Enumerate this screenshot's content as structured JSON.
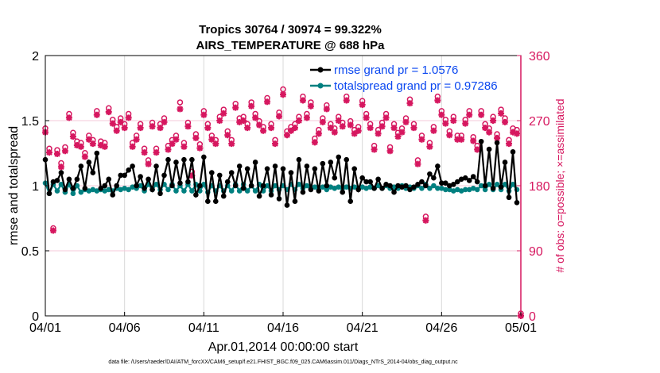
{
  "chart_data": {
    "type": "line",
    "title": [
      "Tropics 30764 / 30974 = 99.322%",
      "AIRS_TEMPERATURE @ 688 hPa"
    ],
    "xlabel": "Apr.01,2014 00:00:00 start",
    "ylabel": "rmse and totalspread",
    "y2label": "# of obs: o=possible; ×=assimilated",
    "footer": "data file: /Users/raeder/DAI/ATM_forcXX/CAM6_setup/f.e21.FHIST_BGC.f09_025.CAM6assim.011/Diags_NTrS_2014-04/obs_diag_output.nc",
    "x_ticks": [
      "04/01",
      "04/06",
      "04/11",
      "04/16",
      "04/21",
      "04/26",
      "05/01"
    ],
    "x_range_days": [
      0,
      30
    ],
    "ylim": [
      0,
      2
    ],
    "y_ticks": [
      "0",
      "0.5",
      "1",
      "1.5",
      "2"
    ],
    "y2lim": [
      0,
      360
    ],
    "y2_ticks": [
      "0",
      "90",
      "180",
      "270",
      "360"
    ],
    "grid": true,
    "legend_placement": "top-right",
    "x_step_hours": 6,
    "colors": {
      "rmse": "#000000",
      "spread": "#008080",
      "obs": "#d6175f",
      "legend_text": "#0a47f0"
    },
    "series": [
      {
        "name": "rmse grand pr = 1.0576",
        "axis": "left",
        "values": [
          1.2,
          0.94,
          1.03,
          1.04,
          1.1,
          0.97,
          1.05,
          0.98,
          1.05,
          1.15,
          0.98,
          1.18,
          1.1,
          1.25,
          0.98,
          1.0,
          1.05,
          0.93,
          1.0,
          1.08,
          1.08,
          1.12,
          1.15,
          1.0,
          1.07,
          0.98,
          1.05,
          0.97,
          1.15,
          0.94,
          1.08,
          1.2,
          1.0,
          1.18,
          1.02,
          1.2,
          1.03,
          1.2,
          0.93,
          1.0,
          1.22,
          0.88,
          1.1,
          0.88,
          1.08,
          0.92,
          1.03,
          1.1,
          1.0,
          1.15,
          0.98,
          1.13,
          1.0,
          1.18,
          0.92,
          1.0,
          1.13,
          0.93,
          1.15,
          0.9,
          1.13,
          0.85,
          1.1,
          0.88,
          1.2,
          0.95,
          1.15,
          0.97,
          1.13,
          0.96,
          1.17,
          1.0,
          1.18,
          1.06,
          1.22,
          0.95,
          1.2,
          0.88,
          1.13,
          0.97,
          1.06,
          1.03,
          1.03,
          0.98,
          1.05,
          0.98,
          1.01,
          1.0,
          0.95,
          1.0,
          0.99,
          1.0,
          0.97,
          0.99,
          1.01,
          1.03,
          1.0,
          1.09,
          1.06,
          1.15,
          1.02,
          1.02,
          1.0,
          1.01,
          1.03,
          1.05,
          1.06,
          1.04,
          1.07,
          1.03,
          1.34,
          1.0,
          1.28,
          0.98,
          1.33,
          0.99,
          1.18,
          0.91,
          1.26,
          0.87
        ]
      },
      {
        "name": "totalspread grand pr = 0.97286",
        "axis": "left",
        "values": [
          1.02,
          0.94,
          1.01,
          0.96,
          1.01,
          0.95,
          1.01,
          0.94,
          1.0,
          0.95,
          0.97,
          0.96,
          0.97,
          0.96,
          0.97,
          0.96,
          0.97,
          0.96,
          0.98,
          0.97,
          0.98,
          0.97,
          0.99,
          0.98,
          1.0,
          0.96,
          1.01,
          0.97,
          1.01,
          0.97,
          1.01,
          0.97,
          1.01,
          0.96,
          1.0,
          0.96,
          1.01,
          0.96,
          1.01,
          0.96,
          1.01,
          0.95,
          1.0,
          0.96,
          1.0,
          0.96,
          1.0,
          0.96,
          1.01,
          0.96,
          1.01,
          0.96,
          1.0,
          0.96,
          1.01,
          0.96,
          1.0,
          0.96,
          1.0,
          0.97,
          1.0,
          0.97,
          1.01,
          0.97,
          1.01,
          0.98,
          1.0,
          0.98,
          0.99,
          0.97,
          0.99,
          0.97,
          0.99,
          0.98,
          0.99,
          0.98,
          0.99,
          0.98,
          0.99,
          0.98,
          0.99,
          0.98,
          0.99,
          0.98,
          1.0,
          0.98,
          1.0,
          0.98,
          0.99,
          0.98,
          1.0,
          0.98,
          0.99,
          0.98,
          1.0,
          0.98,
          1.01,
          0.98,
          1.0,
          0.98,
          0.98,
          0.97,
          0.97,
          0.96,
          0.97,
          0.96,
          0.97,
          0.97,
          0.98,
          0.97,
          1.0,
          0.97,
          1.01,
          0.97,
          1.01,
          0.97,
          1.01,
          0.96,
          1.01,
          0.97
        ]
      },
      {
        "name": "obs possible",
        "axis": "right",
        "marker": "o",
        "values": [
          256,
          228,
          118,
          226,
          208,
          230,
          276,
          250,
          238,
          236,
          222,
          246,
          240,
          280,
          238,
          236,
          284,
          268,
          258,
          270,
          262,
          276,
          236,
          246,
          262,
          228,
          212,
          264,
          228,
          262,
          270,
          232,
          240,
          246,
          292,
          236,
          264,
          196,
          248,
          234,
          280,
          262,
          246,
          240,
          272,
          282,
          252,
          240,
          290,
          270,
          272,
          262,
          292,
          276,
          266,
          258,
          298,
          262,
          240,
          278,
          310,
          252,
          258,
          262,
          272,
          300,
          276,
          292,
          242,
          254,
          270,
          288,
          262,
          256,
          272,
          264,
          300,
          266,
          254,
          258,
          294,
          276,
          262,
          232,
          254,
          264,
          276,
          230,
          262,
          250,
          256,
          270,
          296,
          262,
          212,
          246,
          134,
          236,
          258,
          300,
          280,
          268,
          252,
          272,
          246,
          246,
          268,
          280,
          244,
          232,
          280,
          262,
          256,
          272,
          248,
          282,
          270,
          240,
          256,
          254,
          0
        ]
      },
      {
        "name": "obs assimilated",
        "axis": "right",
        "marker": "x",
        "values": [
          254,
          226,
          118,
          224,
          206,
          228,
          274,
          248,
          236,
          234,
          220,
          244,
          238,
          278,
          236,
          234,
          282,
          266,
          256,
          268,
          260,
          274,
          234,
          244,
          260,
          226,
          210,
          262,
          226,
          260,
          268,
          230,
          238,
          244,
          286,
          234,
          262,
          194,
          246,
          232,
          278,
          260,
          244,
          238,
          270,
          280,
          250,
          238,
          288,
          268,
          270,
          260,
          290,
          274,
          264,
          256,
          296,
          260,
          238,
          276,
          306,
          250,
          256,
          260,
          270,
          298,
          274,
          290,
          240,
          252,
          268,
          286,
          260,
          254,
          270,
          262,
          298,
          264,
          252,
          256,
          292,
          274,
          260,
          230,
          252,
          262,
          274,
          228,
          260,
          248,
          254,
          268,
          294,
          260,
          210,
          244,
          132,
          234,
          256,
          298,
          278,
          266,
          250,
          270,
          244,
          244,
          266,
          278,
          242,
          230,
          278,
          260,
          254,
          270,
          246,
          280,
          268,
          238,
          254,
          252,
          0
        ]
      }
    ]
  }
}
